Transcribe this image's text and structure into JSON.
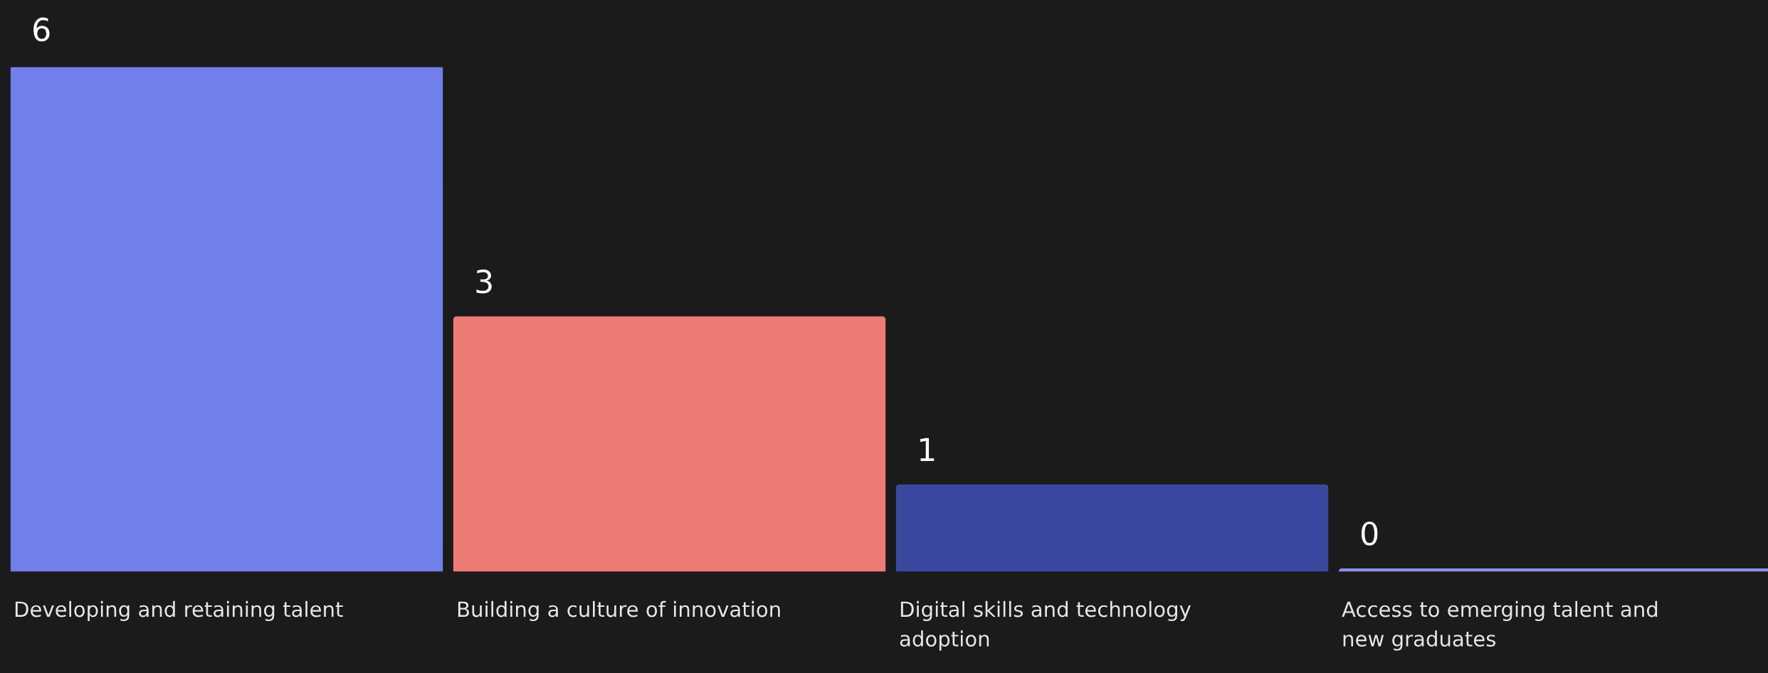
{
  "chart_data": {
    "type": "bar",
    "categories": [
      "Developing and retaining talent",
      "Building a culture of innovation",
      "Digital skills and technology adoption",
      "Access to emerging talent and new graduates"
    ],
    "values": [
      6,
      3,
      1,
      0
    ],
    "colors": [
      "#717fea",
      "#ed7b76",
      "#3c48a0",
      "#8b8ff0"
    ],
    "data_labels": true
  }
}
